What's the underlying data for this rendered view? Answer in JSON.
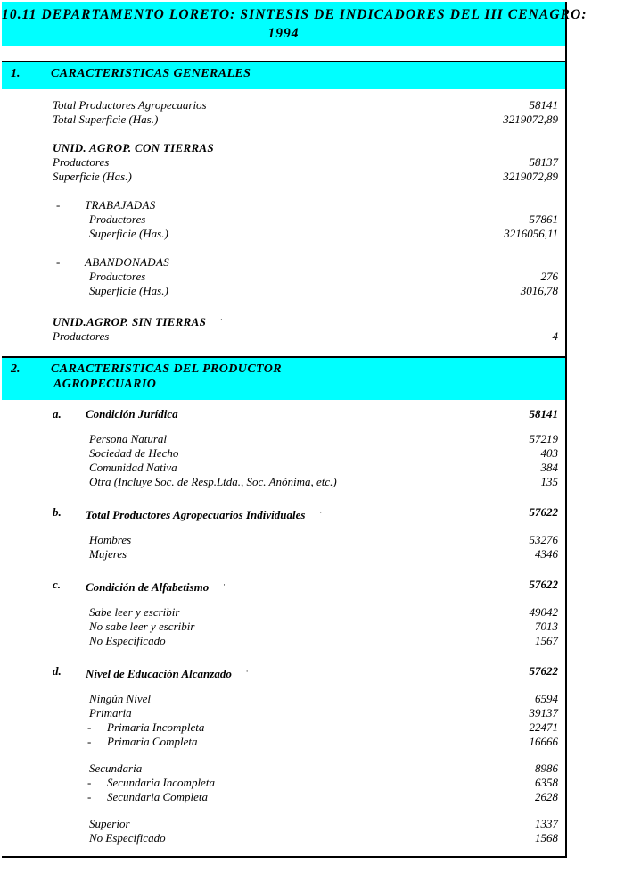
{
  "page": {
    "title_line1": "10.11 DEPARTAMENTO LORETO: SINTESIS DE INDICADORES DEL III CENAGRO:",
    "title_line2": "1994"
  },
  "colors": {
    "band": "#00ffff",
    "text": "#000000",
    "border": "#000000"
  },
  "glyphs": {
    "dash": "-",
    "footnote_mark": "·"
  },
  "sections": [
    {
      "number": "1.",
      "title": "CARACTERISTICAS GENERALES",
      "title_line2": "",
      "rows": [
        {
          "type": "spacer",
          "h": 10
        },
        {
          "type": "item",
          "label": "Total Productores Agropecuarios",
          "value": "58141"
        },
        {
          "type": "item",
          "label": "Total Superficie (Has.)",
          "value": "3219072,89"
        },
        {
          "type": "spacer",
          "h": 16
        },
        {
          "type": "heading",
          "label": "UNID. AGROP. CON TIERRAS",
          "value": ""
        },
        {
          "type": "item",
          "label": "Productores",
          "value": "58137"
        },
        {
          "type": "item",
          "label": "Superficie (Has.)",
          "value": "3219072,89"
        },
        {
          "type": "spacer",
          "h": 16
        },
        {
          "type": "dash",
          "label": "TRABAJADAS",
          "value": ""
        },
        {
          "type": "item2",
          "label": "Productores",
          "value": "57861"
        },
        {
          "type": "item2",
          "label": "Superficie (Has.)",
          "value": "3216056,11"
        },
        {
          "type": "spacer",
          "h": 16
        },
        {
          "type": "dash",
          "label": "ABANDONADAS",
          "value": ""
        },
        {
          "type": "item2",
          "label": "Productores",
          "value": "276"
        },
        {
          "type": "item2",
          "label": "Superficie (Has.)",
          "value": "3016,78"
        },
        {
          "type": "spacer",
          "h": 16
        },
        {
          "type": "heading",
          "label": "UNID.AGROP. SIN TIERRAS",
          "mark": "·",
          "value": ""
        },
        {
          "type": "item",
          "label": "Productores",
          "value": "4"
        },
        {
          "type": "spacer",
          "h": 14
        }
      ]
    },
    {
      "number": "2.",
      "title": "CARACTERISTICAS DEL PRODUCTOR",
      "title_line2": "AGROPECUARIO",
      "rows": [
        {
          "type": "spacer",
          "h": 8
        },
        {
          "type": "letter",
          "letter": "a.",
          "label": "Condición Jurídica",
          "value": "58141"
        },
        {
          "type": "spacer",
          "h": 12
        },
        {
          "type": "sub",
          "label": "Persona Natural",
          "value": "57219"
        },
        {
          "type": "sub",
          "label": "Sociedad de Hecho",
          "value": "403"
        },
        {
          "type": "sub",
          "label": "Comunidad Nativa",
          "value": "384"
        },
        {
          "type": "sub",
          "label": "Otra (Incluye Soc. de Resp.Ltda., Soc. Anónima, etc.)",
          "value": "135"
        },
        {
          "type": "spacer",
          "h": 18
        },
        {
          "type": "letter",
          "letter": "b.",
          "label": "Total Productores Agropecuarios Individuales",
          "mark": "·",
          "value": "57622"
        },
        {
          "type": "spacer",
          "h": 12
        },
        {
          "type": "sub",
          "label": "Hombres",
          "value": "53276"
        },
        {
          "type": "sub",
          "label": "Mujeres",
          "value": "4346"
        },
        {
          "type": "spacer",
          "h": 18
        },
        {
          "type": "letter",
          "letter": "c.",
          "label": "Condición de Alfabetismo",
          "mark": "·",
          "value": "57622"
        },
        {
          "type": "spacer",
          "h": 12
        },
        {
          "type": "sub",
          "label": "Sabe leer y escribir",
          "value": "49042"
        },
        {
          "type": "sub",
          "label": "No sabe leer y escribir",
          "value": "7013"
        },
        {
          "type": "sub",
          "label": "No Especificado",
          "value": "1567"
        },
        {
          "type": "spacer",
          "h": 18
        },
        {
          "type": "letter",
          "letter": "d.",
          "label": "Nivel de Educación Alcanzado",
          "mark": "·",
          "value": "57622"
        },
        {
          "type": "spacer",
          "h": 12
        },
        {
          "type": "sub",
          "label": "Ningún Nivel",
          "value": "6594"
        },
        {
          "type": "sub",
          "label": "Primaria",
          "value": "39137"
        },
        {
          "type": "subdash",
          "label": "Primaria Incompleta",
          "value": "22471"
        },
        {
          "type": "subdash",
          "label": "Primaria Completa",
          "value": "16666"
        },
        {
          "type": "spacer",
          "h": 14
        },
        {
          "type": "sub",
          "label": "Secundaria",
          "value": "8986"
        },
        {
          "type": "subdash",
          "label": "Secundaria Incompleta",
          "value": "6358"
        },
        {
          "type": "subdash",
          "label": "Secundaria Completa",
          "value": "2628"
        },
        {
          "type": "spacer",
          "h": 14
        },
        {
          "type": "sub",
          "label": "Superior",
          "value": "1337"
        },
        {
          "type": "sub",
          "label": "No Especificado",
          "value": "1568"
        },
        {
          "type": "spacer",
          "h": 12
        }
      ]
    }
  ]
}
